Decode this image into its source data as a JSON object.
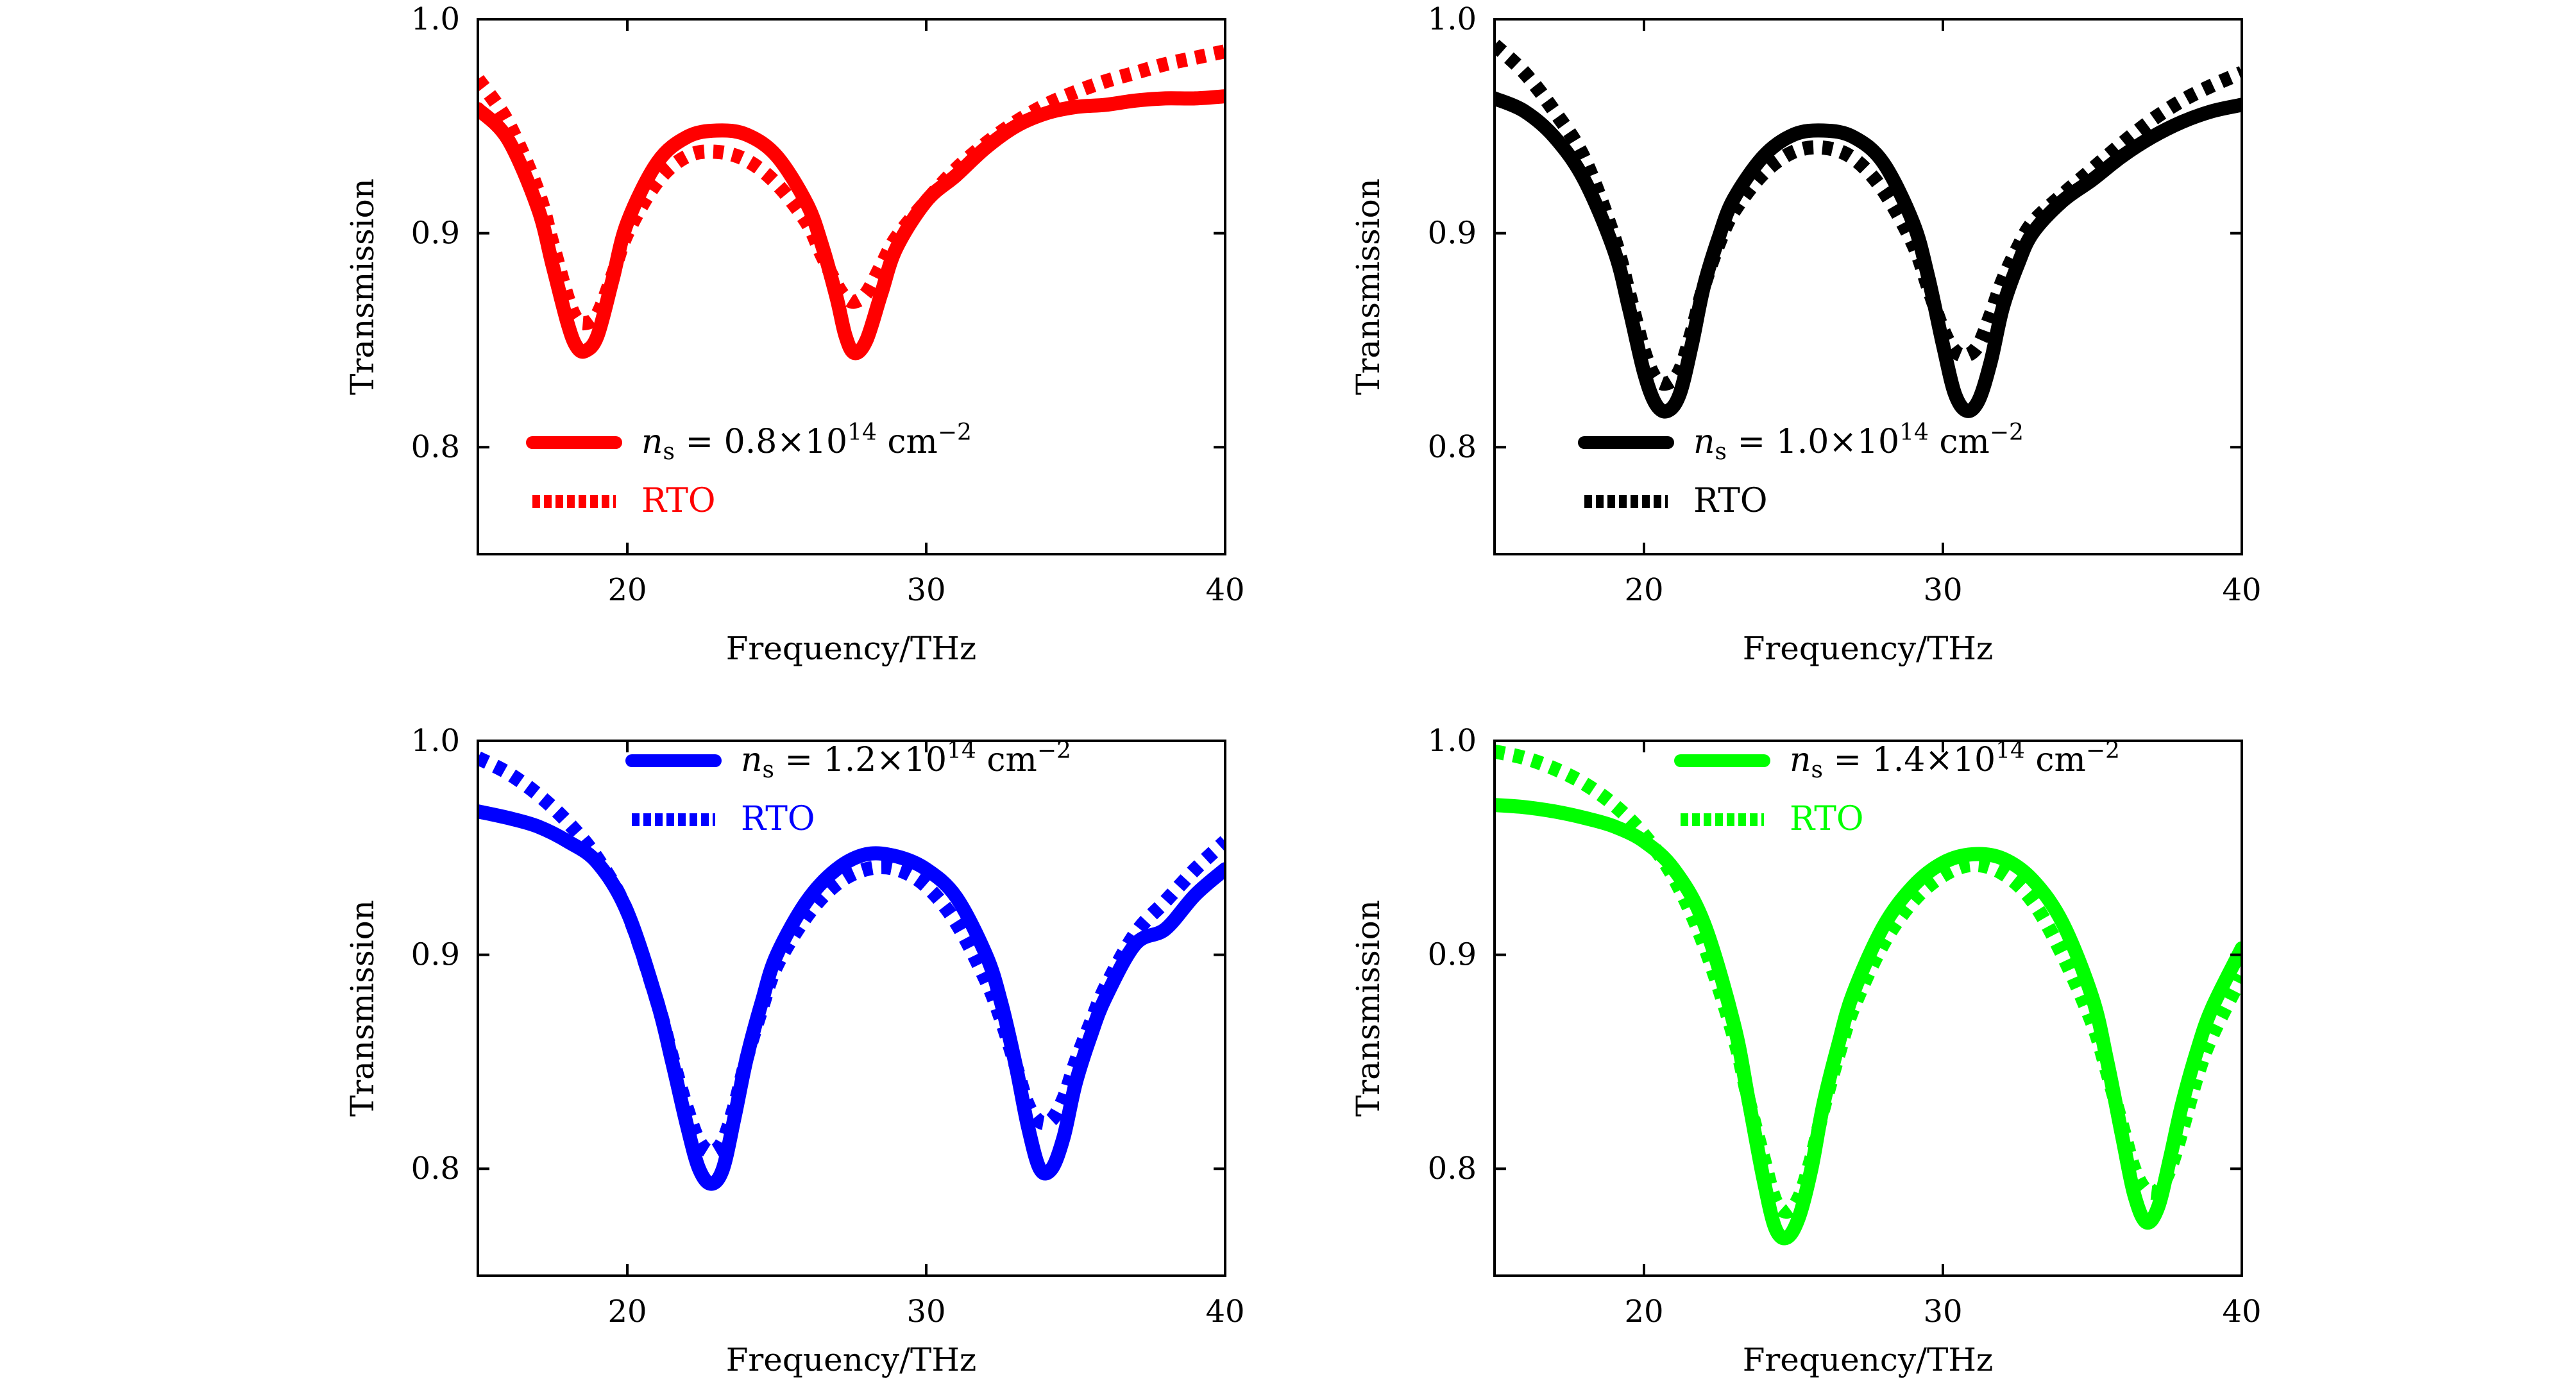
{
  "chart_data": [
    {
      "type": "line",
      "color": "#ff0000",
      "xlabel": "Frequency/THz",
      "ylabel": "Transmission",
      "xlim": [
        15,
        40
      ],
      "ylim": [
        0.75,
        1.0
      ],
      "xticks": [
        "20",
        "30",
        "40"
      ],
      "yticks": [
        "0.8",
        "0.9",
        "1.0"
      ],
      "legend_position": "lower-left",
      "series": [
        {
          "name": "n_s = 0.8×10^14 cm^-2",
          "style": "solid",
          "x": [
            15,
            16,
            17,
            17.5,
            18,
            18.3,
            18.6,
            19,
            19.5,
            20,
            21,
            22,
            23,
            24,
            25,
            26,
            26.5,
            27,
            27.3,
            27.6,
            28,
            28.5,
            29,
            30,
            31,
            32,
            33,
            34,
            35,
            36,
            37,
            38,
            39,
            40
          ],
          "y": [
            0.958,
            0.944,
            0.912,
            0.885,
            0.858,
            0.847,
            0.845,
            0.852,
            0.878,
            0.905,
            0.933,
            0.945,
            0.948,
            0.946,
            0.936,
            0.914,
            0.895,
            0.87,
            0.852,
            0.844,
            0.85,
            0.872,
            0.893,
            0.915,
            0.927,
            0.94,
            0.95,
            0.956,
            0.959,
            0.96,
            0.962,
            0.963,
            0.963,
            0.964
          ]
        },
        {
          "name": "RTO",
          "style": "dotted",
          "x": [
            15,
            16,
            17,
            17.5,
            18,
            18.3,
            18.6,
            19,
            19.5,
            20,
            21,
            22,
            23,
            24,
            25,
            26,
            26.5,
            27,
            27.3,
            27.6,
            28,
            28.5,
            29,
            30,
            31,
            32,
            33,
            34,
            35,
            36,
            37,
            38,
            39,
            40
          ],
          "y": [
            0.972,
            0.952,
            0.92,
            0.895,
            0.87,
            0.86,
            0.858,
            0.862,
            0.88,
            0.9,
            0.924,
            0.936,
            0.938,
            0.934,
            0.923,
            0.905,
            0.89,
            0.876,
            0.87,
            0.868,
            0.872,
            0.885,
            0.898,
            0.915,
            0.93,
            0.942,
            0.952,
            0.96,
            0.966,
            0.971,
            0.975,
            0.979,
            0.982,
            0.985
          ]
        }
      ]
    },
    {
      "type": "line",
      "color": "#000000",
      "xlabel": "Frequency/THz",
      "ylabel": "Transmission",
      "xlim": [
        15,
        40
      ],
      "ylim": [
        0.75,
        1.0
      ],
      "xticks": [
        "20",
        "30",
        "40"
      ],
      "yticks": [
        "0.8",
        "0.9",
        "1.0"
      ],
      "legend_position": "lower-left",
      "series": [
        {
          "name": "n_s = 1.0×10^14 cm^-2",
          "style": "solid",
          "x": [
            15,
            16,
            17,
            18,
            19,
            19.5,
            20,
            20.4,
            20.8,
            21.2,
            21.6,
            22,
            22.5,
            23,
            24,
            25,
            26,
            27,
            28,
            29,
            29.5,
            30,
            30.4,
            30.8,
            31.2,
            31.6,
            32,
            32.5,
            33,
            34,
            35,
            36,
            37,
            38,
            39,
            40
          ],
          "y": [
            0.963,
            0.957,
            0.945,
            0.925,
            0.892,
            0.865,
            0.835,
            0.82,
            0.817,
            0.825,
            0.848,
            0.875,
            0.898,
            0.916,
            0.936,
            0.946,
            0.948,
            0.945,
            0.933,
            0.905,
            0.88,
            0.848,
            0.825,
            0.817,
            0.822,
            0.84,
            0.865,
            0.885,
            0.9,
            0.915,
            0.925,
            0.936,
            0.945,
            0.952,
            0.957,
            0.96
          ]
        },
        {
          "name": "RTO",
          "style": "dotted",
          "x": [
            15,
            16,
            17,
            18,
            19,
            19.5,
            20,
            20.4,
            20.8,
            21.2,
            21.6,
            22,
            22.5,
            23,
            24,
            25,
            26,
            27,
            28,
            29,
            29.5,
            30,
            30.4,
            30.8,
            31.2,
            31.6,
            32,
            32.5,
            33,
            34,
            35,
            36,
            37,
            38,
            39,
            40
          ],
          "y": [
            0.988,
            0.975,
            0.957,
            0.935,
            0.898,
            0.872,
            0.845,
            0.832,
            0.83,
            0.836,
            0.854,
            0.875,
            0.895,
            0.91,
            0.928,
            0.938,
            0.94,
            0.935,
            0.92,
            0.895,
            0.875,
            0.855,
            0.845,
            0.843,
            0.848,
            0.862,
            0.878,
            0.893,
            0.905,
            0.918,
            0.93,
            0.942,
            0.953,
            0.962,
            0.969,
            0.975
          ]
        }
      ]
    },
    {
      "type": "line",
      "color": "#0000ff",
      "xlabel": "Frequency/THz",
      "ylabel": "Transmission",
      "xlim": [
        15,
        40
      ],
      "ylim": [
        0.75,
        1.0
      ],
      "xticks": [
        "20",
        "30",
        "40"
      ],
      "yticks": [
        "0.8",
        "0.9",
        "1.0"
      ],
      "legend_position": "top-right",
      "series": [
        {
          "name": "n_s = 1.2×10^14 cm^-2",
          "style": "solid",
          "x": [
            15,
            16,
            17,
            18,
            19,
            20,
            21,
            21.5,
            22,
            22.4,
            22.8,
            23.2,
            23.6,
            24,
            24.5,
            25,
            26,
            27,
            28,
            29,
            30,
            31,
            32,
            32.5,
            33,
            33.4,
            33.8,
            34.2,
            34.6,
            35,
            35.5,
            36,
            37,
            38,
            39,
            40
          ],
          "y": [
            0.967,
            0.964,
            0.96,
            0.953,
            0.943,
            0.92,
            0.878,
            0.85,
            0.82,
            0.8,
            0.793,
            0.8,
            0.825,
            0.852,
            0.878,
            0.9,
            0.925,
            0.94,
            0.947,
            0.946,
            0.94,
            0.927,
            0.9,
            0.878,
            0.848,
            0.82,
            0.8,
            0.8,
            0.815,
            0.84,
            0.862,
            0.88,
            0.905,
            0.912,
            0.928,
            0.94
          ]
        },
        {
          "name": "RTO",
          "style": "dotted",
          "x": [
            15,
            16,
            17,
            18,
            19,
            20,
            21,
            21.5,
            22,
            22.4,
            22.8,
            23.2,
            23.6,
            24,
            24.5,
            25,
            26,
            27,
            28,
            29,
            30,
            31,
            32,
            32.5,
            33,
            33.4,
            33.8,
            34.2,
            34.6,
            35,
            35.5,
            36,
            37,
            38,
            39,
            40
          ],
          "y": [
            0.992,
            0.985,
            0.975,
            0.962,
            0.945,
            0.92,
            0.878,
            0.852,
            0.828,
            0.813,
            0.808,
            0.813,
            0.83,
            0.852,
            0.875,
            0.895,
            0.918,
            0.933,
            0.94,
            0.94,
            0.932,
            0.915,
            0.888,
            0.87,
            0.848,
            0.83,
            0.822,
            0.823,
            0.833,
            0.85,
            0.868,
            0.885,
            0.91,
            0.925,
            0.94,
            0.953
          ]
        }
      ]
    },
    {
      "type": "line",
      "color": "#00ff00",
      "xlabel": "Frequency/THz",
      "ylabel": "Transmission",
      "xlim": [
        15,
        40
      ],
      "ylim": [
        0.75,
        1.0
      ],
      "xticks": [
        "20",
        "30",
        "40"
      ],
      "yticks": [
        "0.8",
        "0.9",
        "1.0"
      ],
      "legend_position": "top-right",
      "series": [
        {
          "name": "n_s = 1.4×10^14 cm^-2",
          "style": "solid",
          "x": [
            15,
            16,
            17,
            18,
            19,
            20,
            21,
            22,
            23,
            23.5,
            24,
            24.4,
            24.8,
            25.2,
            25.6,
            26,
            26.5,
            27,
            28,
            29,
            30,
            31,
            32,
            33,
            34,
            35,
            35.5,
            36,
            36.4,
            36.8,
            37.2,
            37.6,
            38,
            38.5,
            39,
            40
          ],
          "y": [
            0.97,
            0.969,
            0.967,
            0.964,
            0.96,
            0.953,
            0.94,
            0.915,
            0.868,
            0.832,
            0.795,
            0.772,
            0.768,
            0.778,
            0.8,
            0.83,
            0.858,
            0.882,
            0.913,
            0.932,
            0.943,
            0.947,
            0.945,
            0.935,
            0.915,
            0.88,
            0.85,
            0.815,
            0.788,
            0.775,
            0.782,
            0.805,
            0.83,
            0.855,
            0.875,
            0.903
          ]
        },
        {
          "name": "RTO",
          "style": "dotted",
          "x": [
            15,
            16,
            17,
            18,
            19,
            20,
            21,
            22,
            23,
            23.5,
            24,
            24.4,
            24.8,
            25.2,
            25.6,
            26,
            26.5,
            27,
            28,
            29,
            30,
            31,
            32,
            33,
            34,
            35,
            35.5,
            36,
            36.4,
            36.8,
            37.2,
            37.6,
            38,
            38.5,
            39,
            40
          ],
          "y": [
            0.995,
            0.992,
            0.987,
            0.98,
            0.97,
            0.956,
            0.936,
            0.905,
            0.862,
            0.832,
            0.805,
            0.785,
            0.78,
            0.787,
            0.805,
            0.828,
            0.853,
            0.875,
            0.905,
            0.925,
            0.937,
            0.942,
            0.938,
            0.925,
            0.9,
            0.868,
            0.845,
            0.82,
            0.8,
            0.79,
            0.79,
            0.8,
            0.818,
            0.843,
            0.862,
            0.89
          ]
        }
      ]
    }
  ]
}
